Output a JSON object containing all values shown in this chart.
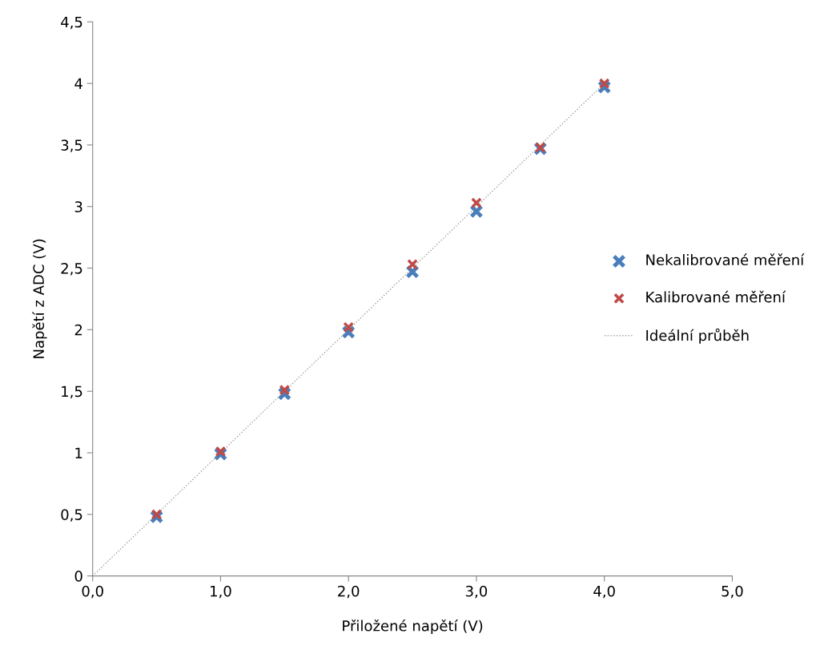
{
  "chart_data": {
    "type": "scatter",
    "xlabel": "Přiložené napětí (V)",
    "ylabel": "Napětí z ADC (V)",
    "x": [
      0.5,
      1.0,
      1.5,
      2.0,
      2.5,
      3.0,
      3.5,
      4.0
    ],
    "series": [
      {
        "name": "Nekalibrované měření",
        "color": "#4a7ebb",
        "values": [
          0.48,
          0.99,
          1.48,
          1.98,
          2.47,
          2.96,
          3.47,
          3.97
        ],
        "marker": "cross"
      },
      {
        "name": "Kalibrované měření",
        "color": "#be4b48",
        "values": [
          0.5,
          1.01,
          1.51,
          2.02,
          2.53,
          3.03,
          3.48,
          4.0
        ],
        "marker": "cross"
      },
      {
        "name": "Ideální průběh",
        "type": "line",
        "color": "#a0a0a0",
        "x": [
          0,
          4
        ],
        "values": [
          0,
          4
        ],
        "line_style": "dotted",
        "marker": "none"
      }
    ],
    "xlim": [
      0,
      5
    ],
    "ylim": [
      0,
      4.5
    ],
    "xticks": [
      {
        "value": 0,
        "label": "0,0"
      },
      {
        "value": 1,
        "label": "1,0"
      },
      {
        "value": 2,
        "label": "2,0"
      },
      {
        "value": 3,
        "label": "3,0"
      },
      {
        "value": 4,
        "label": "4,0"
      },
      {
        "value": 5,
        "label": "5,0"
      }
    ],
    "yticks": [
      0,
      {
        "value": 0.5,
        "label": "0,5"
      },
      1,
      {
        "value": 1.5,
        "label": "1,5"
      },
      2,
      {
        "value": 2.5,
        "label": "2,5"
      },
      3,
      {
        "value": 3.5,
        "label": "3,5"
      },
      4,
      {
        "value": 4.5,
        "label": "4,5"
      }
    ],
    "grid": false,
    "legend": "right"
  }
}
